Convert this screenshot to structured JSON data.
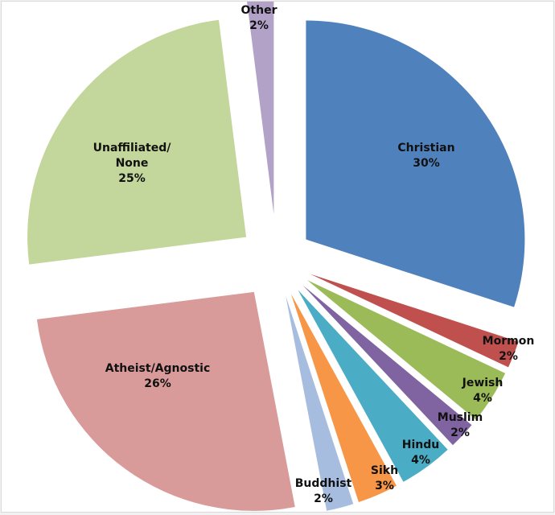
{
  "chart_data": {
    "type": "pie",
    "title": "",
    "exploded": true,
    "start": "top, clockwise",
    "slices": [
      {
        "label": "Christian",
        "value": 30,
        "display": "30%",
        "color": "#4f81bd"
      },
      {
        "label": "Mormon",
        "value": 2,
        "display": "2%",
        "color": "#c0504d"
      },
      {
        "label": "Jewish",
        "value": 4,
        "display": "4%",
        "color": "#9bbb59"
      },
      {
        "label": "Muslim",
        "value": 2,
        "display": "2%",
        "color": "#8064a2"
      },
      {
        "label": "Hindu",
        "value": 4,
        "display": "4%",
        "color": "#4bacc6"
      },
      {
        "label": "Sikh",
        "value": 3,
        "display": "3%",
        "color": "#f79646"
      },
      {
        "label": "Buddhist",
        "value": 2,
        "display": "2%",
        "color": "#a7bde0"
      },
      {
        "label": "Atheist/Agnostic",
        "value": 26,
        "display": "26%",
        "color": "#d99a9a"
      },
      {
        "label": "Unaffiliated/ None",
        "value": 25,
        "display": "25%",
        "color": "#c3d69b"
      },
      {
        "label": "Other",
        "value": 2,
        "display": "2%",
        "color": "#b3a2c7"
      }
    ]
  }
}
